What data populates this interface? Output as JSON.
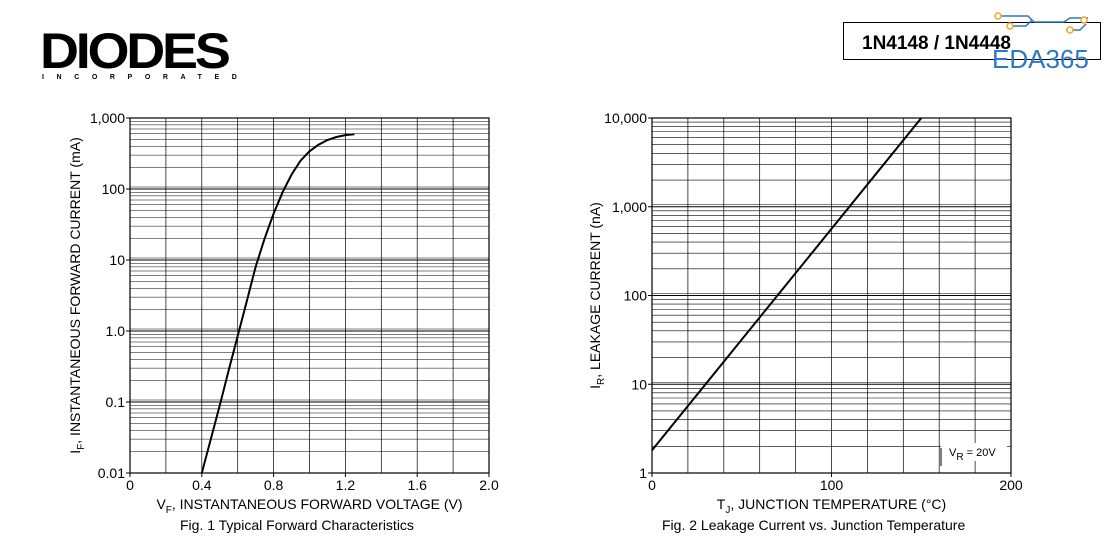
{
  "header": {
    "logo_text": "DIODES",
    "logo_subtitle": "INCORPORATED",
    "part_number": "1N4148 / 1N4448",
    "watermark_text": "EDA365"
  },
  "chart_data": [
    {
      "type": "line",
      "caption": "Fig. 1 Typical Forward Characteristics",
      "xlabel_main": "V",
      "xlabel_sub": "F",
      "xlabel_rest": ", INSTANTANEOUS FORWARD VOLTAGE (V)",
      "ylabel_main": "I",
      "ylabel_sub": "F",
      "ylabel_rest": ", INSTANTANEOUS FORWARD CURRENT (mA)",
      "xlim": [
        0,
        2.0
      ],
      "ylim": [
        0.01,
        1000
      ],
      "yscale": "log",
      "xticks": [
        0,
        0.4,
        0.8,
        1.2,
        1.6,
        2.0
      ],
      "xtick_labels": [
        "0",
        "0.4",
        "0.8",
        "1.2",
        "1.6",
        "2.0"
      ],
      "xgrid": [
        0.2,
        0.4,
        0.6,
        0.8,
        1.0,
        1.2,
        1.4,
        1.6,
        1.8
      ],
      "yticks": [
        0.01,
        0.1,
        1,
        10,
        100,
        1000
      ],
      "ytick_labels": [
        "0.01",
        "0.1",
        "1.0",
        "10",
        "100",
        "1,000"
      ],
      "grid": true,
      "series": [
        {
          "x": [
            0.4,
            0.45,
            0.5,
            0.55,
            0.6,
            0.65,
            0.7,
            0.75,
            0.8,
            0.85,
            0.9,
            0.95,
            1.0,
            1.05,
            1.1,
            1.15,
            1.2,
            1.25
          ],
          "y": [
            0.01,
            0.03,
            0.09,
            0.28,
            0.85,
            2.6,
            8,
            20,
            45,
            90,
            160,
            250,
            340,
            420,
            490,
            540,
            575,
            590
          ]
        }
      ]
    },
    {
      "type": "line",
      "caption": "Fig. 2  Leakage Current vs. Junction Temperature",
      "xlabel_main": "T",
      "xlabel_sub": "J",
      "xlabel_rest": ", JUNCTION TEMPERATURE (°C)",
      "ylabel_main": "I",
      "ylabel_sub": "R",
      "ylabel_rest": ", LEAKAGE CURRENT (nA)",
      "xlim": [
        0,
        200
      ],
      "ylim": [
        1,
        10000
      ],
      "yscale": "log",
      "xticks": [
        0,
        100,
        200
      ],
      "xtick_labels": [
        "0",
        "100",
        "200"
      ],
      "xgrid": [
        20,
        40,
        60,
        80,
        100,
        120,
        140,
        160,
        180
      ],
      "yticks": [
        1,
        10,
        100,
        1000,
        10000
      ],
      "ytick_labels": [
        "1",
        "10",
        "100",
        "1,000",
        "10,000"
      ],
      "grid": true,
      "annotation_main": "V",
      "annotation_sub": "R",
      "annotation_rest": " = 20V",
      "series": [
        {
          "x": [
            0,
            150
          ],
          "y": [
            1.8,
            10000
          ]
        }
      ]
    }
  ]
}
